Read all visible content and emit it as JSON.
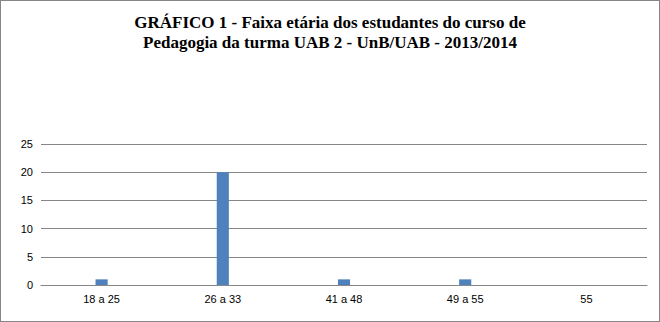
{
  "chart_data": {
    "type": "bar",
    "title": "GRÁFICO 1 - Faixa etária dos estudantes do curso de\nPedagogia da turma UAB 2 - UnB/UAB - 2013/2014",
    "categories": [
      "18 a 25",
      "26 a 33",
      "41 a 48",
      "49 a 55",
      "55"
    ],
    "values": [
      1,
      20,
      1,
      1,
      0
    ],
    "color": "#4f81bd",
    "ylim": [
      0,
      25
    ],
    "yticks": [
      0,
      5,
      10,
      15,
      20,
      25
    ],
    "grid": true
  }
}
